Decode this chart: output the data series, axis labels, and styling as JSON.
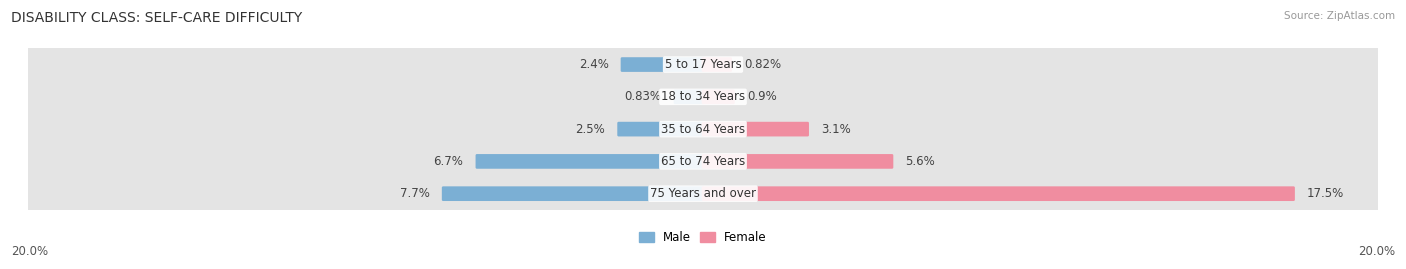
{
  "title": "DISABILITY CLASS: SELF-CARE DIFFICULTY",
  "source": "Source: ZipAtlas.com",
  "categories": [
    "5 to 17 Years",
    "18 to 34 Years",
    "35 to 64 Years",
    "65 to 74 Years",
    "75 Years and over"
  ],
  "male_values": [
    2.4,
    0.83,
    2.5,
    6.7,
    7.7
  ],
  "female_values": [
    0.82,
    0.9,
    3.1,
    5.6,
    17.5
  ],
  "male_labels": [
    "2.4%",
    "0.83%",
    "2.5%",
    "6.7%",
    "7.7%"
  ],
  "female_labels": [
    "0.82%",
    "0.9%",
    "3.1%",
    "5.6%",
    "17.5%"
  ],
  "male_color": "#7bafd4",
  "female_color": "#f08da0",
  "max_value": 20.0,
  "axis_label": "20.0%",
  "background_color": "#ffffff",
  "row_bg_color": "#e4e4e4",
  "title_fontsize": 10,
  "label_fontsize": 8.5,
  "category_fontsize": 8.5
}
